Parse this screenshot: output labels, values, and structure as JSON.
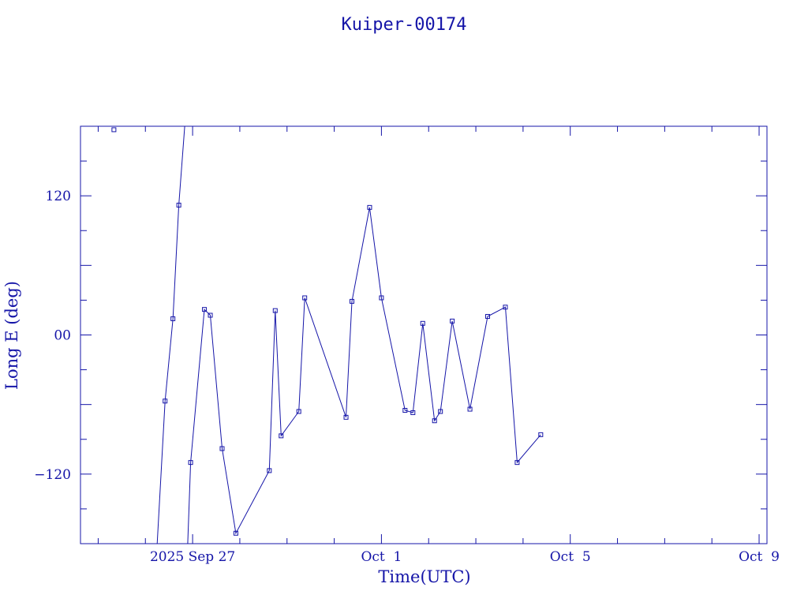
{
  "colors": {
    "ink": "#1515a8",
    "background": "#ffffff"
  },
  "chart_data": {
    "type": "scatter",
    "title": "Kuiper-00174",
    "xlabel": "Time(UTC)",
    "ylabel": "Long E (deg)",
    "xlim": [
      "2025-09-24T15:00",
      "2025-10-09T04:00"
    ],
    "ylim": [
      -180,
      180
    ],
    "x_ticks": [
      {
        "at": "2025-09-27T00:00",
        "label": "2025 Sep 27"
      },
      {
        "at": "2025-10-01T00:00",
        "label": "Oct  1"
      },
      {
        "at": "2025-10-05T00:00",
        "label": "Oct  5"
      },
      {
        "at": "2025-10-09T00:00",
        "label": "Oct  9"
      }
    ],
    "y_ticks": [
      {
        "value": -120,
        "label": "−120"
      },
      {
        "value": 0,
        "label": "00"
      },
      {
        "value": 120,
        "label": "120"
      }
    ],
    "grid": false,
    "marker": "open-square",
    "line_segments": [
      {
        "points": [
          {
            "t": "2025-09-26T06:00",
            "lon": -180
          },
          {
            "t": "2025-09-26T10:00",
            "lon": -57
          },
          {
            "t": "2025-09-26T14:00",
            "lon": 14
          },
          {
            "t": "2025-09-26T17:00",
            "lon": 112
          },
          {
            "t": "2025-09-26T20:00",
            "lon": 180
          }
        ]
      },
      {
        "points": [
          {
            "t": "2025-09-26T21:30",
            "lon": -180
          },
          {
            "t": "2025-09-26T23:00",
            "lon": -110
          },
          {
            "t": "2025-09-27T06:00",
            "lon": 22
          },
          {
            "t": "2025-09-27T09:00",
            "lon": 17
          },
          {
            "t": "2025-09-27T15:00",
            "lon": -98
          },
          {
            "t": "2025-09-27T22:00",
            "lon": -171
          },
          {
            "t": "2025-09-28T15:00",
            "lon": -117
          },
          {
            "t": "2025-09-28T18:00",
            "lon": 21
          },
          {
            "t": "2025-09-28T21:00",
            "lon": -87
          },
          {
            "t": "2025-09-29T06:00",
            "lon": -66
          },
          {
            "t": "2025-09-29T09:00",
            "lon": 32
          },
          {
            "t": "2025-09-30T06:00",
            "lon": -71
          },
          {
            "t": "2025-09-30T09:00",
            "lon": 29
          },
          {
            "t": "2025-09-30T18:00",
            "lon": 110
          },
          {
            "t": "2025-10-01T00:00",
            "lon": 32
          },
          {
            "t": "2025-10-01T12:00",
            "lon": -65
          },
          {
            "t": "2025-10-01T16:00",
            "lon": -67
          },
          {
            "t": "2025-10-01T21:00",
            "lon": 10
          },
          {
            "t": "2025-10-02T03:00",
            "lon": -74
          },
          {
            "t": "2025-10-02T06:00",
            "lon": -66
          },
          {
            "t": "2025-10-02T12:00",
            "lon": 12
          },
          {
            "t": "2025-10-02T21:00",
            "lon": -64
          },
          {
            "t": "2025-10-03T06:00",
            "lon": 16
          },
          {
            "t": "2025-10-03T15:00",
            "lon": 24
          },
          {
            "t": "2025-10-03T21:00",
            "lon": -110
          },
          {
            "t": "2025-10-04T09:00",
            "lon": -86
          }
        ]
      }
    ],
    "isolated_points": [
      {
        "t": "2025-09-25T08:00",
        "lon": 177
      }
    ]
  }
}
